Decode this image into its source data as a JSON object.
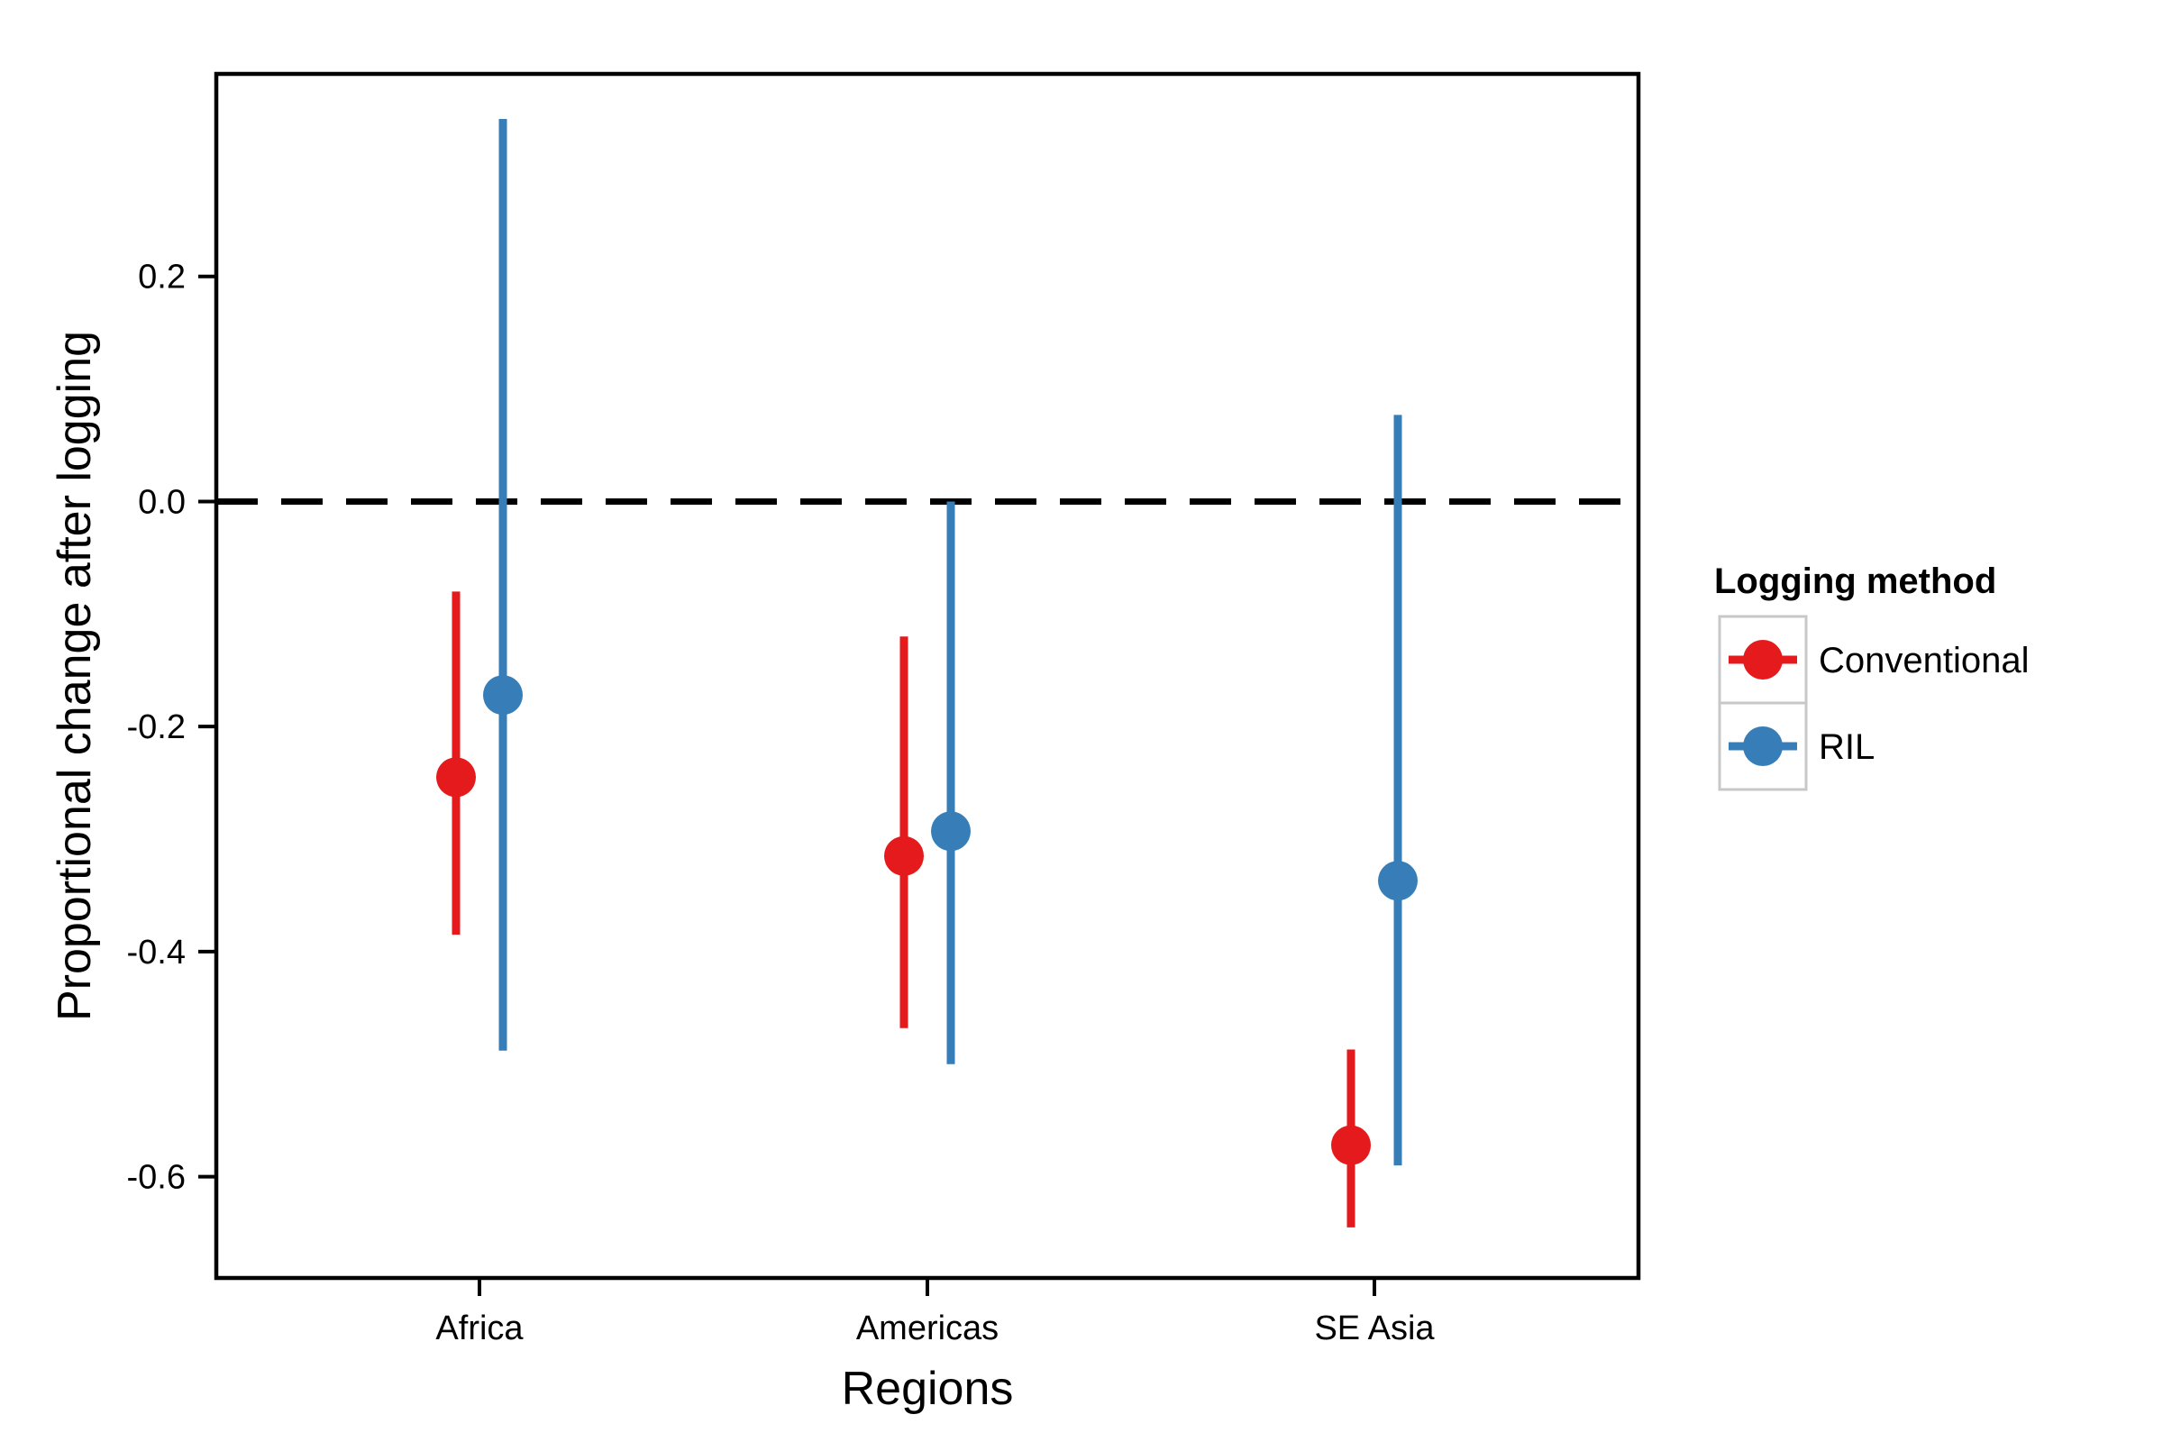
{
  "chart_data": {
    "type": "point-range",
    "title": "",
    "xlabel": "Regions",
    "ylabel": "Proportional change after logging",
    "categories": [
      "Africa",
      "Americas",
      "SE Asia"
    ],
    "ylim": [
      -0.69,
      0.38
    ],
    "yticks": [
      0.2,
      0.0,
      -0.2,
      -0.4,
      -0.6
    ],
    "ytick_labels": [
      "0.2",
      "0.0",
      "-0.2",
      "-0.4",
      "-0.6"
    ],
    "reference_line": {
      "y": 0.0,
      "style": "dashed",
      "color": "#000000"
    },
    "legend": {
      "title": "Logging method",
      "placement": "right"
    },
    "series": [
      {
        "name": "Conventional",
        "color": "#E41A1C",
        "points": [
          {
            "category": "Africa",
            "y": -0.245,
            "low": -0.385,
            "high": -0.08
          },
          {
            "category": "Americas",
            "y": -0.315,
            "low": -0.468,
            "high": -0.12
          },
          {
            "category": "SE Asia",
            "y": -0.572,
            "low": -0.645,
            "high": -0.487
          }
        ]
      },
      {
        "name": "RIL",
        "color": "#377EB8",
        "points": [
          {
            "category": "Africa",
            "y": -0.172,
            "low": -0.488,
            "high": 0.34
          },
          {
            "category": "Americas",
            "y": -0.293,
            "low": -0.5,
            "high": 0.0
          },
          {
            "category": "SE Asia",
            "y": -0.337,
            "low": -0.59,
            "high": 0.077
          }
        ]
      }
    ]
  }
}
